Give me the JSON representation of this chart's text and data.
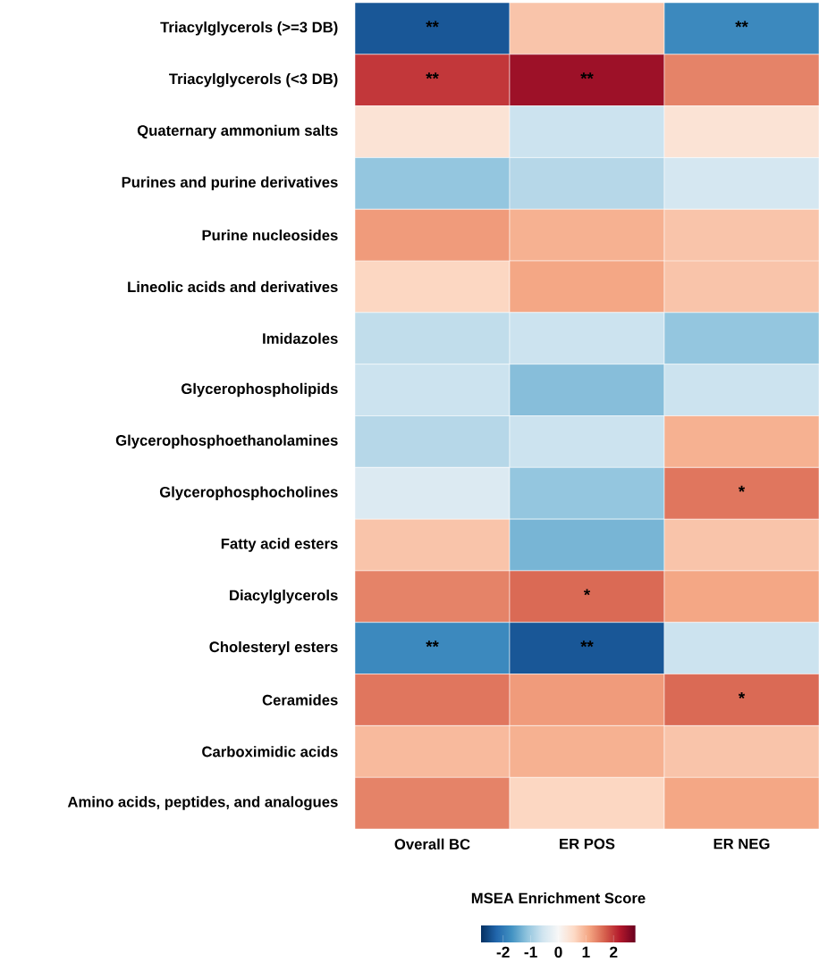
{
  "chart_data": {
    "type": "heatmap",
    "categories": [
      "Overall BC",
      "ER POS",
      "ER NEG"
    ],
    "y_categories": [
      "Triacylglycerols (>=3 DB)",
      "Triacylglycerols (<3 DB)",
      "Quaternary ammonium salts",
      "Purines and purine derivatives",
      "Purine nucleosides",
      "Lineolic acids and derivatives",
      "Imidazoles",
      "Glycerophospholipids",
      "Glycerophosphoethanolamines",
      "Glycerophosphocholines",
      "Fatty acid esters",
      "Diacylglycerols",
      "Cholesteryl esters",
      "Ceramides",
      "Carboximidic acids",
      "Amino acids, peptides, and analogues"
    ],
    "cells": [
      [
        -2.4,
        0.8,
        -1.8
      ],
      [
        2.0,
        2.4,
        1.4
      ],
      [
        0.4,
        -0.6,
        0.4
      ],
      [
        -1.1,
        -0.8,
        -0.5
      ],
      [
        1.2,
        1.0,
        0.8
      ],
      [
        0.6,
        1.1,
        0.8
      ],
      [
        -0.7,
        -0.6,
        -1.1
      ],
      [
        -0.6,
        -1.2,
        -0.6
      ],
      [
        -0.8,
        -0.6,
        1.0
      ],
      [
        -0.4,
        -1.1,
        1.5
      ],
      [
        0.8,
        -1.3,
        0.8
      ],
      [
        1.4,
        1.6,
        1.1
      ],
      [
        -1.8,
        -2.4,
        -0.6
      ],
      [
        1.5,
        1.2,
        1.6
      ],
      [
        0.9,
        1.0,
        0.8
      ],
      [
        1.4,
        0.6,
        1.1
      ]
    ],
    "cell_labels": [
      [
        "**",
        null,
        "**"
      ],
      [
        "**",
        "**",
        null
      ],
      [
        null,
        null,
        null
      ],
      [
        null,
        null,
        null
      ],
      [
        null,
        null,
        null
      ],
      [
        null,
        null,
        null
      ],
      [
        null,
        null,
        null
      ],
      [
        null,
        null,
        null
      ],
      [
        null,
        null,
        null
      ],
      [
        null,
        null,
        "*"
      ],
      [
        null,
        null,
        null
      ],
      [
        null,
        "*",
        null
      ],
      [
        "**",
        "**",
        null
      ],
      [
        null,
        null,
        "*"
      ],
      [
        null,
        null,
        null
      ],
      [
        null,
        null,
        null
      ]
    ],
    "clabel": "MSEA Enrichment Score",
    "clim": [
      -2.8,
      2.8
    ],
    "cticks": [
      -2,
      -1,
      0,
      1,
      2
    ]
  }
}
